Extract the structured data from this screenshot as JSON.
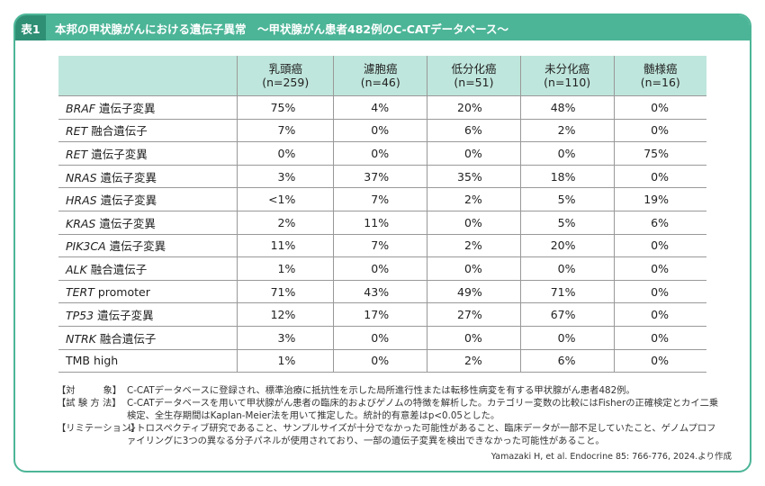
{
  "header": {
    "tag": "表1",
    "title": "本邦の甲状腺がんにおける遺伝子異常　～甲状腺がん患者482例のC-CATデータベース～"
  },
  "table": {
    "columns": [
      {
        "name": "乳頭癌",
        "n": "(n=259)"
      },
      {
        "name": "濾胞癌",
        "n": "(n=46)"
      },
      {
        "name": "低分化癌",
        "n": "(n=51)"
      },
      {
        "name": "未分化癌",
        "n": "(n=110)"
      },
      {
        "name": "髄様癌",
        "n": "(n=16)"
      }
    ],
    "rows": [
      {
        "gene": "BRAF",
        "label": "遺伝子変異",
        "cells": [
          "75%",
          "4%",
          "20%",
          "48%",
          "0%"
        ]
      },
      {
        "gene": "RET",
        "label": "融合遺伝子",
        "cells": [
          "7%",
          "0%",
          "6%",
          "2%",
          "0%"
        ]
      },
      {
        "gene": "RET",
        "label": "遺伝子変異",
        "cells": [
          "0%",
          "0%",
          "0%",
          "0%",
          "75%"
        ]
      },
      {
        "gene": "NRAS",
        "label": "遺伝子変異",
        "cells": [
          "3%",
          "37%",
          "35%",
          "18%",
          "0%"
        ]
      },
      {
        "gene": "HRAS",
        "label": "遺伝子変異",
        "cells": [
          "<1%",
          "7%",
          "2%",
          "5%",
          "19%"
        ]
      },
      {
        "gene": "KRAS",
        "label": "遺伝子変異",
        "cells": [
          "2%",
          "11%",
          "0%",
          "5%",
          "6%"
        ]
      },
      {
        "gene": "PIK3CA",
        "label": "遺伝子変異",
        "cells": [
          "11%",
          "7%",
          "2%",
          "20%",
          "0%"
        ]
      },
      {
        "gene": "ALK",
        "label": "融合遺伝子",
        "cells": [
          "1%",
          "0%",
          "0%",
          "0%",
          "0%"
        ]
      },
      {
        "gene": "TERT",
        "label": "promoter",
        "cells": [
          "71%",
          "43%",
          "49%",
          "71%",
          "0%"
        ]
      },
      {
        "gene": "TP53",
        "label": "遺伝子変異",
        "cells": [
          "12%",
          "17%",
          "27%",
          "67%",
          "0%"
        ]
      },
      {
        "gene": "NTRK",
        "label": "融合遺伝子",
        "cells": [
          "3%",
          "0%",
          "0%",
          "0%",
          "0%"
        ]
      },
      {
        "label": "TMB high",
        "cells": [
          "1%",
          "0%",
          "2%",
          "6%",
          "0%"
        ]
      }
    ]
  },
  "notes": [
    {
      "label": "【対　　　象】",
      "text": "C-CATデータベースに登録され、標準治療に抵抗性を示した局所進行性または転移性病変を有する甲状腺がん患者482例。"
    },
    {
      "label": "【試 験 方 法】",
      "text": "C-CATデータベースを用いて甲状腺がん患者の臨床的およびゲノムの特徴を解析した。カテゴリー変数の比較にはFisherの正確検定とカイ二乗検定、全生存期間はKaplan-Meier法を用いて推定した。統計的有意差はp<0.05とした。"
    },
    {
      "label": "【リミテーション】",
      "text": "レトロスペクティブ研究であること、サンプルサイズが十分でなかった可能性があること、臨床データが一部不足していたこと、ゲノムプロファイリングに3つの異なる分子パネルが使用されており、一部の遺伝子変異を検出できなかった可能性があること。"
    }
  ],
  "source": "Yamazaki H, et al. Endocrine 85: 766-776, 2024.より作成"
}
